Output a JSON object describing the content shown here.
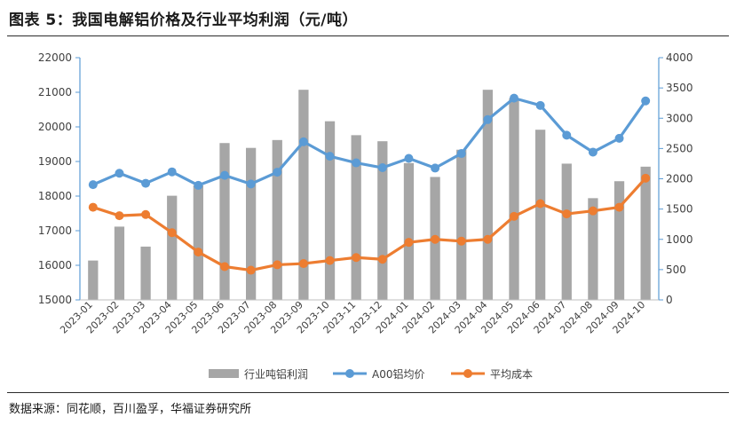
{
  "title": "图表 5：我国电解铝价格及行业平均利润（元/吨）",
  "source": "数据来源：同花顺，百川盈孚，华福证券研究所",
  "colors": {
    "bar": "#a6a6a6",
    "price_line": "#5b9bd5",
    "cost_line": "#ed7d31",
    "axis": "#5b9bd5"
  },
  "chart_data": {
    "type": "bar+line",
    "categories": [
      "2023-01",
      "2023-02",
      "2023-03",
      "2023-04",
      "2023-05",
      "2023-06",
      "2023-07",
      "2023-08",
      "2023-09",
      "2023-10",
      "2023-11",
      "2023-12",
      "2024-01",
      "2024-02",
      "2024-03",
      "2024-04",
      "2024-05",
      "2024-06",
      "2024-07",
      "2024-08",
      "2024-09",
      "2024-10"
    ],
    "left_axis": {
      "ylim": [
        15000,
        22000
      ],
      "ticks": [
        "15000",
        "16000",
        "17000",
        "18000",
        "19000",
        "20000",
        "21000",
        "22000"
      ]
    },
    "right_axis": {
      "ylim": [
        0,
        4000
      ],
      "ticks": [
        "0",
        "500",
        "1000",
        "1500",
        "2000",
        "2500",
        "3000",
        "3500",
        "4000"
      ]
    },
    "series": [
      {
        "name": "行业吨铝利润",
        "type": "bar",
        "axis": "right",
        "values": [
          650,
          1210,
          880,
          1720,
          1890,
          2590,
          2510,
          2640,
          3470,
          2950,
          2720,
          2620,
          2260,
          2030,
          2480,
          3470,
          3330,
          2810,
          2250,
          1680,
          1960,
          2200
        ]
      },
      {
        "name": "A00铝均价",
        "type": "line",
        "axis": "left",
        "values": [
          18330,
          18660,
          18370,
          18700,
          18310,
          18600,
          18350,
          18690,
          19570,
          19150,
          18960,
          18820,
          19090,
          18810,
          19230,
          20210,
          20830,
          20620,
          19760,
          19270,
          19670,
          20750
        ]
      },
      {
        "name": "平均成本",
        "type": "line",
        "axis": "right",
        "values": [
          1530,
          1390,
          1410,
          1110,
          790,
          550,
          490,
          580,
          600,
          650,
          700,
          670,
          950,
          1000,
          970,
          1000,
          1380,
          1590,
          1420,
          1470,
          1530,
          2010
        ]
      }
    ],
    "legend_position": "bottom",
    "grid": false
  }
}
